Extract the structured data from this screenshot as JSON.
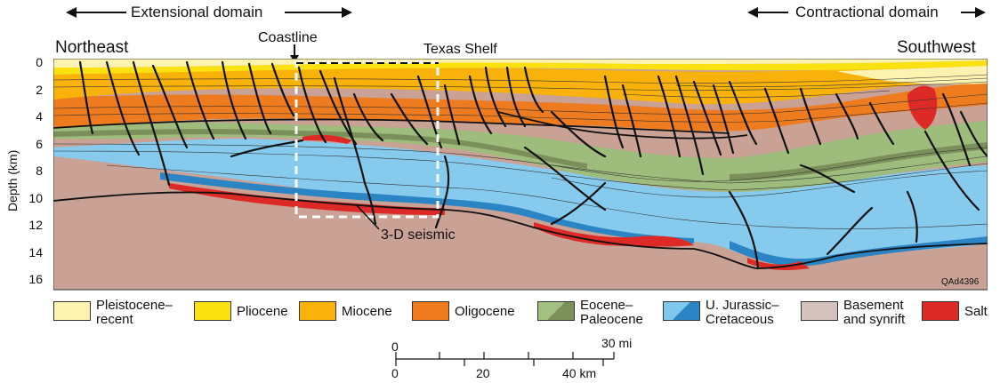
{
  "header": {
    "extensional": "Extensional domain",
    "contractional": "Contractional domain",
    "northeast": "Northeast",
    "southwest": "Southwest",
    "coastline": "Coastline",
    "texas_shelf": "Texas Shelf",
    "seismic": "3-D seismic",
    "figure_id": "QAd4396"
  },
  "axis": {
    "ylabel": "Depth (km)",
    "ticks": [
      "0",
      "2",
      "4",
      "6",
      "8",
      "10",
      "12",
      "14",
      "16"
    ]
  },
  "legend": [
    {
      "label": "Pleistocene–\nrecent",
      "color": "#fdf3b0"
    },
    {
      "label": "Pliocene",
      "color": "#f9e20f"
    },
    {
      "label": "Miocene",
      "color": "#f8b20a"
    },
    {
      "label": "Oligocene",
      "color": "#ee7b1e"
    },
    {
      "label": "Eocene–\nPaleocene",
      "color": "#a2c080",
      "color2": "#7b8f5a"
    },
    {
      "label": "U. Jurassic–\nCretaceous",
      "color": "#7fc8ec",
      "color2": "#2b85c4"
    },
    {
      "label": "Basement\nand synrift",
      "color": "#d3c3bc"
    },
    {
      "label": "Salt",
      "color": "#dd2a26"
    }
  ],
  "scale": {
    "mi_zero": "0",
    "mi_end": "30 mi",
    "km_labels": [
      "0",
      "20",
      "40 km"
    ]
  }
}
